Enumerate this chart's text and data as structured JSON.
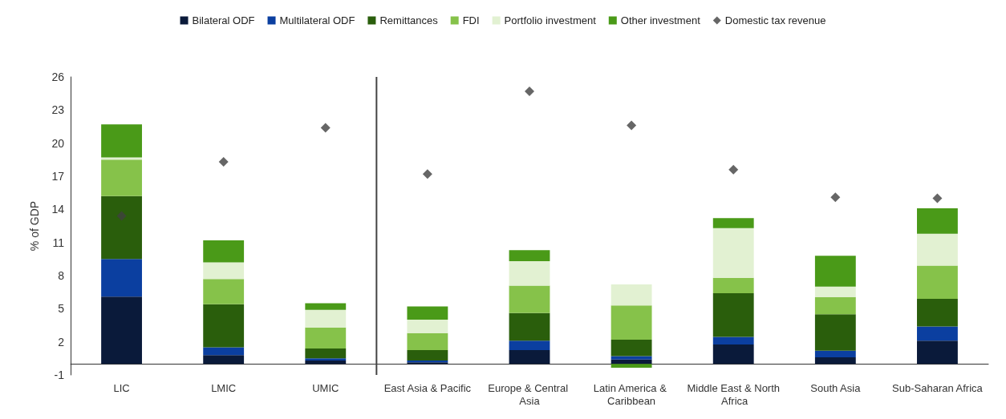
{
  "chart_data": {
    "type": "bar",
    "stacked": true,
    "ylabel": "% of GDP",
    "categories": [
      "LIC",
      "LMIC",
      "UMIC",
      "East Asia & Pacific",
      "Europe & Central Asia",
      "Latin America & Caribbean",
      "Middle East & North Africa",
      "South Asia",
      "Sub-Saharan Africa"
    ],
    "series": [
      {
        "name": "Bilateral ODF",
        "color": "#0a1a3a",
        "values": [
          6.1,
          0.8,
          0.3,
          0.15,
          1.25,
          0.4,
          1.75,
          0.6,
          2.1
        ]
      },
      {
        "name": "Multilateral ODF",
        "color": "#0b3fa0",
        "values": [
          3.4,
          0.7,
          0.2,
          0.15,
          0.85,
          0.3,
          0.7,
          0.6,
          1.3
        ]
      },
      {
        "name": "Remittances",
        "color": "#2a5e0c",
        "values": [
          5.7,
          3.9,
          0.9,
          0.95,
          2.5,
          1.5,
          3.95,
          3.3,
          2.5
        ]
      },
      {
        "name": "FDI",
        "color": "#86c24a",
        "values": [
          3.3,
          2.3,
          1.9,
          1.55,
          2.5,
          3.1,
          1.4,
          1.55,
          3.0
        ]
      },
      {
        "name": "Portfolio investment",
        "color": "#e2f1d2",
        "values": [
          0.2,
          1.5,
          1.6,
          1.2,
          2.2,
          1.9,
          4.5,
          0.95,
          2.9
        ]
      },
      {
        "name": "Other investment",
        "color": "#4a9a18",
        "values": [
          3.0,
          2.0,
          0.6,
          1.2,
          1.0,
          -0.35,
          0.9,
          2.8,
          2.3
        ]
      },
      {
        "name": "Domestic tax revenue",
        "type": "scatter",
        "marker": "diamond",
        "color": "#404040",
        "values": [
          13.4,
          18.3,
          21.4,
          17.2,
          24.7,
          21.6,
          17.6,
          15.1,
          15.0
        ]
      }
    ],
    "ylim": [
      -1,
      26
    ],
    "yticks": [
      -1,
      2,
      5,
      8,
      11,
      14,
      17,
      20,
      23,
      26
    ],
    "grid": false,
    "legend": "top"
  }
}
